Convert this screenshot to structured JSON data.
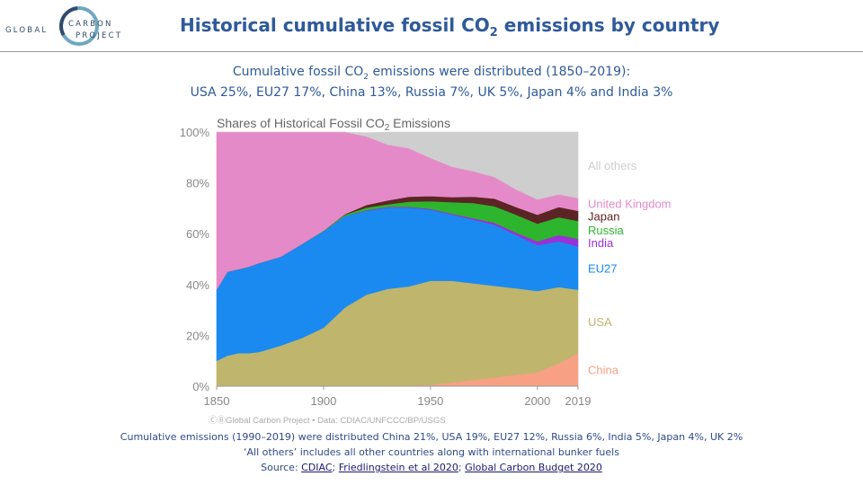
{
  "logo": {
    "line1_left": "GLOBAL",
    "line1_right": "CARBON",
    "line2": "PROJECT"
  },
  "title": {
    "main": "Historical cumulative fossil CO",
    "sub": "2",
    "tail": " emissions by country"
  },
  "subtitle": {
    "line1_a": "Cumulative fossil CO",
    "line1_sub": "2",
    "line1_b": " emissions were distributed (1850–2019):",
    "line2": "USA 25%, EU27 17%, China 13%, Russia 7%, UK 5%, Japan 4% and India 3%"
  },
  "chart_data": {
    "type": "area",
    "title_main": "Shares of Historical Fossil CO",
    "title_sub": "2",
    "title_tail": " Emissions",
    "x_ticks": [
      "1850",
      "1900",
      "1950",
      "2000",
      "2019"
    ],
    "y_ticks": [
      "0%",
      "20%",
      "40%",
      "60%",
      "80%",
      "100%"
    ],
    "xlim": [
      1850,
      2019
    ],
    "ylim": [
      0,
      100
    ],
    "years": [
      1850,
      1855,
      1860,
      1865,
      1870,
      1880,
      1890,
      1900,
      1910,
      1920,
      1930,
      1940,
      1950,
      1960,
      1970,
      1980,
      1990,
      2000,
      2010,
      2019
    ],
    "series": [
      {
        "name": "China",
        "color": "#f8a084",
        "values": [
          0,
          0,
          0,
          0,
          0,
          0,
          0,
          0,
          0,
          0,
          0.3,
          0.3,
          0.5,
          1.5,
          2.5,
          3.5,
          4.5,
          5.5,
          9,
          13
        ]
      },
      {
        "name": "USA",
        "color": "#bfb56d",
        "values": [
          10,
          12,
          13,
          13,
          13.5,
          16,
          19,
          23,
          31,
          36,
          38,
          39,
          41,
          40,
          38,
          36,
          34,
          32,
          30,
          25
        ]
      },
      {
        "name": "EU27",
        "color": "#1a8af0",
        "values": [
          28,
          33,
          33,
          34,
          35,
          35,
          37,
          38,
          36,
          33,
          32,
          31,
          28,
          26,
          25,
          24,
          21,
          18,
          18,
          17
        ]
      },
      {
        "name": "India",
        "color": "#9a30d6",
        "values": [
          0,
          0,
          0,
          0,
          0,
          0,
          0,
          0,
          0,
          0.3,
          0.3,
          0.3,
          0.3,
          0.4,
          0.6,
          0.8,
          1,
          1.5,
          2.5,
          3
        ]
      },
      {
        "name": "Russia",
        "color": "#2db52d",
        "values": [
          0,
          0,
          0,
          0,
          0,
          0,
          0,
          0.2,
          0.5,
          1,
          1,
          2,
          3,
          4.5,
          6,
          6.5,
          7,
          7,
          7,
          7
        ]
      },
      {
        "name": "Japan",
        "color": "#5c2424",
        "values": [
          0,
          0,
          0,
          0,
          0,
          0,
          0,
          0,
          0.2,
          1,
          1.5,
          2,
          2,
          2,
          2.5,
          3,
          3,
          3.5,
          4,
          4
        ]
      },
      {
        "name": "United Kingdom",
        "color": "#e58ac8",
        "values": [
          62,
          55,
          54,
          53,
          51.5,
          49,
          44,
          38.8,
          32.3,
          27,
          22,
          19,
          15,
          12,
          10,
          8.5,
          7,
          6,
          5,
          5
        ]
      },
      {
        "name": "All others",
        "color": "#cecece",
        "values": [
          0,
          0,
          0,
          0,
          0,
          0,
          0,
          0,
          0,
          1.4,
          4.9,
          6.4,
          10.2,
          13.6,
          15.4,
          17.7,
          22.5,
          26.5,
          24.5,
          26
        ]
      }
    ],
    "source": "Global Carbon Project",
    "data_note": "Data: CDIAC/UNFCCC/BP/USGS"
  },
  "footer": {
    "line1": "Cumulative emissions (1990–2019) were distributed China 21%, USA 19%, EU27 12%, Russia 6%, India 5%, Japan 4%, UK 2%",
    "line2": "‘All others’ includes all other countries along with international bunker fuels",
    "source_label": "Source: ",
    "link1": "CDIAC",
    "sep": "; ",
    "link2": "Friedlingstein et al 2020",
    "link3": "Global Carbon Budget 2020"
  }
}
